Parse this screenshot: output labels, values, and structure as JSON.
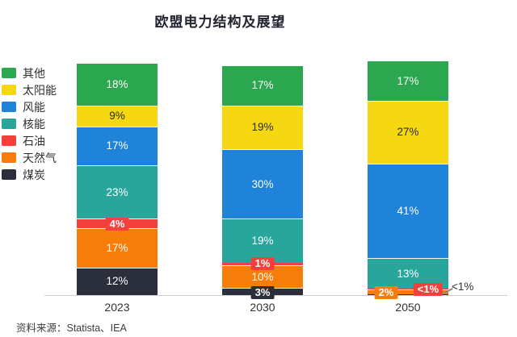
{
  "title": "欧盟电力结构及展望",
  "source": "资料来源：Statista、IEA",
  "colors": {
    "other": "#2BA84F",
    "solar": "#F5D712",
    "wind": "#1F83D9",
    "nuclear": "#29A69C",
    "oil": "#F2413C",
    "gas": "#F67D0A",
    "coal": "#2B2E3B",
    "axis_line": "#cfcfcf",
    "title_text": "#21242e"
  },
  "chart_data": {
    "type": "bar",
    "stacked": true,
    "unit": "%",
    "title": "欧盟电力结构及展望",
    "categories": [
      "2023",
      "2030",
      "2050"
    ],
    "ylim": [
      0,
      100
    ],
    "grid": false,
    "legend_position": "left",
    "series": [
      {
        "name": "其他",
        "color": "#2BA84F",
        "label_color": "#ffffff",
        "points": [
          {
            "v": 18,
            "label": "18%",
            "mode": "in"
          },
          {
            "v": 17,
            "label": "17%",
            "mode": "in"
          },
          {
            "v": 17,
            "label": "17%",
            "mode": "in"
          }
        ]
      },
      {
        "name": "太阳能",
        "color": "#F5D712",
        "label_color": "#2b2b2b",
        "points": [
          {
            "v": 9,
            "label": "9%",
            "mode": "in"
          },
          {
            "v": 19,
            "label": "19%",
            "mode": "in"
          },
          {
            "v": 27,
            "label": "27%",
            "mode": "in"
          }
        ]
      },
      {
        "name": "风能",
        "color": "#1F83D9",
        "label_color": "#ffffff",
        "points": [
          {
            "v": 17,
            "label": "17%",
            "mode": "in"
          },
          {
            "v": 30,
            "label": "30%",
            "mode": "in"
          },
          {
            "v": 41,
            "label": "41%",
            "mode": "in"
          }
        ]
      },
      {
        "name": "核能",
        "color": "#29A69C",
        "label_color": "#ffffff",
        "points": [
          {
            "v": 23,
            "label": "23%",
            "mode": "in"
          },
          {
            "v": 19,
            "label": "19%",
            "mode": "in"
          },
          {
            "v": 13,
            "label": "13%",
            "mode": "in"
          }
        ]
      },
      {
        "name": "石油",
        "color": "#F2413C",
        "label_color": "#ffffff",
        "points": [
          {
            "v": 4,
            "label": "4%",
            "mode": "badge",
            "dx": 0,
            "dy": 0
          },
          {
            "v": 1,
            "label": "1%",
            "mode": "badge",
            "dx": 0,
            "dy": 0
          },
          {
            "v": 0.4,
            "label": "<1%",
            "mode": "badge",
            "dx": 25,
            "dy": 1
          }
        ]
      },
      {
        "name": "天然气",
        "color": "#F67D0A",
        "label_color": "#ffffff",
        "points": [
          {
            "v": 17,
            "label": "17%",
            "mode": "in"
          },
          {
            "v": 10,
            "label": "10%",
            "mode": "in"
          },
          {
            "v": 2,
            "label": "2%",
            "mode": "badge",
            "dx": -27,
            "dy": 1
          }
        ]
      },
      {
        "name": "煤炭",
        "color": "#2B2E3B",
        "label_color": "#ffffff",
        "points": [
          {
            "v": 12,
            "label": "12%",
            "mode": "in"
          },
          {
            "v": 3,
            "label": "3%",
            "mode": "badge",
            "dx": 0,
            "dy": 1
          },
          {
            "v": 0.3,
            "label": "<1%",
            "mode": "out"
          }
        ]
      }
    ]
  }
}
